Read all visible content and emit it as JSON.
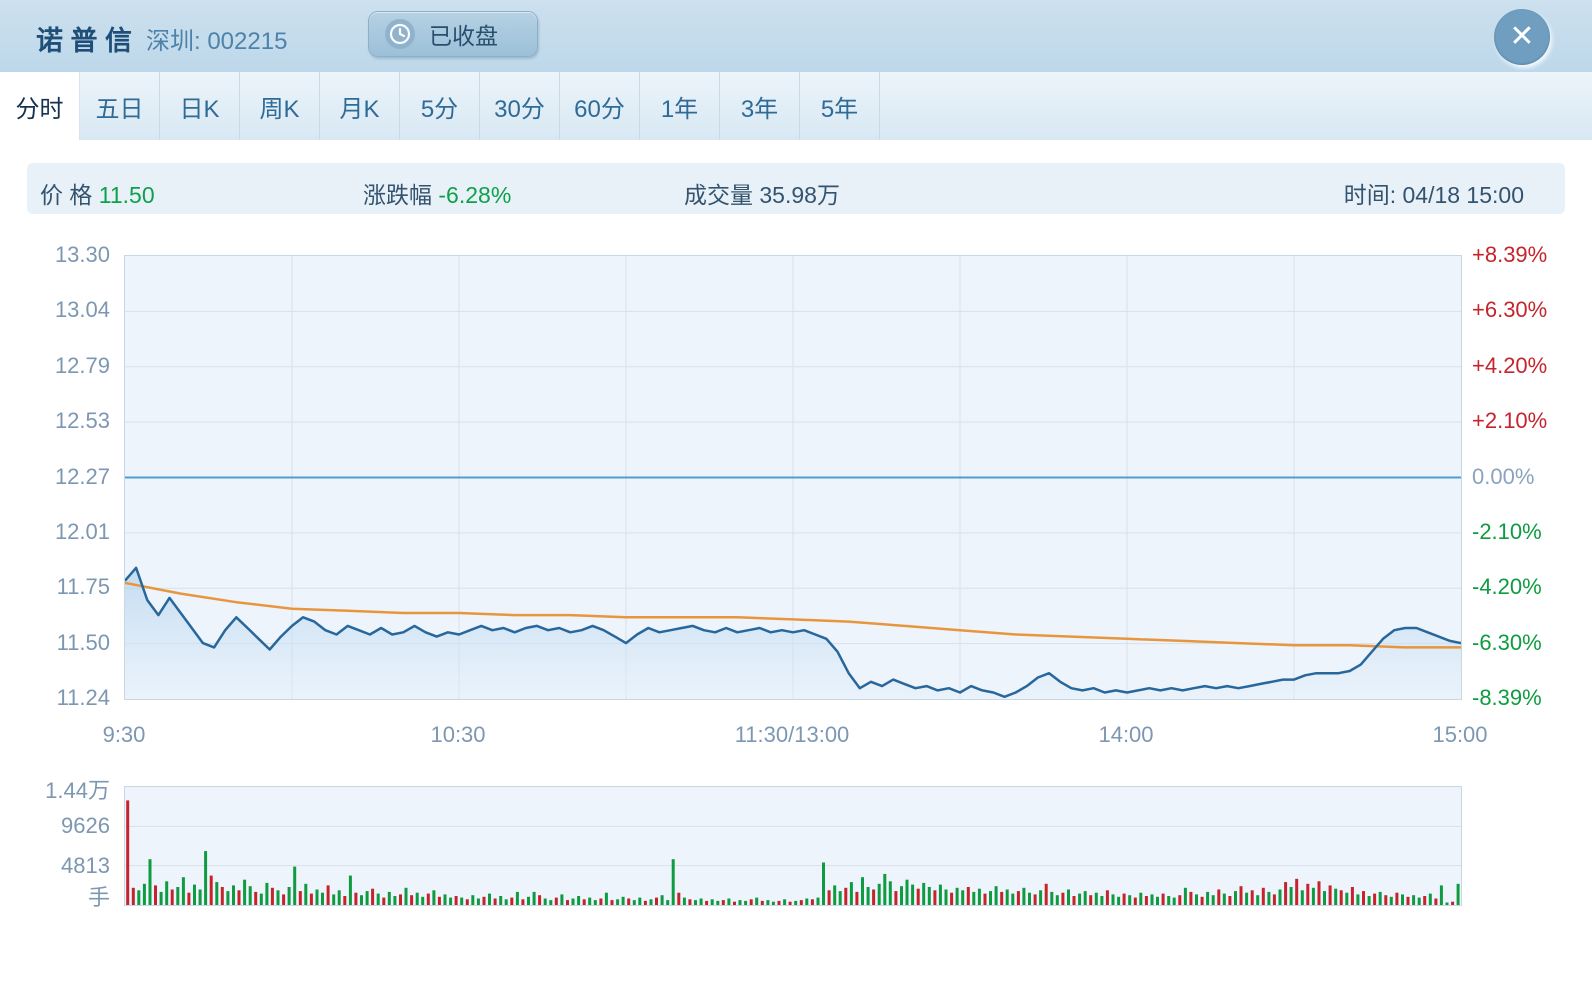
{
  "header": {
    "title": "诺 普 信",
    "exchange_code": "深圳: 002215",
    "market_status": "已收盘",
    "close_glyph": "✕"
  },
  "tabs": [
    {
      "name": "intraday",
      "label": "分时",
      "active": true
    },
    {
      "name": "5day",
      "label": "五日",
      "active": false
    },
    {
      "name": "daily-k",
      "label": "日K",
      "active": false
    },
    {
      "name": "weekly-k",
      "label": "周K",
      "active": false
    },
    {
      "name": "monthly-k",
      "label": "月K",
      "active": false
    },
    {
      "name": "5min",
      "label": "5分",
      "active": false
    },
    {
      "name": "30min",
      "label": "30分",
      "active": false
    },
    {
      "name": "60min",
      "label": "60分",
      "active": false
    },
    {
      "name": "1year",
      "label": "1年",
      "active": false
    },
    {
      "name": "3year",
      "label": "3年",
      "active": false
    },
    {
      "name": "5year",
      "label": "5年",
      "active": false
    }
  ],
  "info_bar": {
    "price_label": "价 格",
    "price_value": "11.50",
    "change_label": "涨跌幅",
    "change_value": "-6.28%",
    "volume_label": "成交量",
    "volume_value": "35.98万",
    "time_label": "时间:",
    "time_value": "04/18 15:00"
  },
  "colors": {
    "price_line": "#28679b",
    "average_line": "#e8963e",
    "previous_close_line": "#549bcd",
    "up_red": "#c5242c",
    "down_green": "#0f9b41",
    "neutral_axis": "#8aa4bd",
    "grid": "#d7e1eb",
    "area_fill_top": "rgba(160,200,233,0.55)",
    "area_fill_bottom": "rgba(228,240,250,0.40)"
  },
  "chart_data": {
    "type": "line",
    "title": "诺普信 002215 分时走势",
    "x_axis_labels": [
      "9:30",
      "10:30",
      "11:30/13:00",
      "14:00",
      "15:00"
    ],
    "minutes_span": 240,
    "price_axis_max": 13.3,
    "price_axis_min": 11.24,
    "previous_close": 12.27,
    "left_axis_prices": [
      "13.30",
      "13.04",
      "12.79",
      "12.53",
      "12.27",
      "12.01",
      "11.75",
      "11.50",
      "11.24"
    ],
    "right_axis_percent": [
      {
        "label": "+8.39%",
        "tone": "red"
      },
      {
        "label": "+6.30%",
        "tone": "red"
      },
      {
        "label": "+4.20%",
        "tone": "red"
      },
      {
        "label": "+2.10%",
        "tone": "red"
      },
      {
        "label": "0.00%",
        "tone": "neutral"
      },
      {
        "label": "-2.10%",
        "tone": "green"
      },
      {
        "label": "-4.20%",
        "tone": "green"
      },
      {
        "label": "-6.30%",
        "tone": "green"
      },
      {
        "label": "-8.39%",
        "tone": "green"
      }
    ],
    "series": [
      {
        "name": "price",
        "step_minutes": 2,
        "values": [
          11.79,
          11.85,
          11.7,
          11.63,
          11.71,
          11.64,
          11.57,
          11.5,
          11.48,
          11.56,
          11.62,
          11.57,
          11.52,
          11.47,
          11.53,
          11.58,
          11.62,
          11.6,
          11.56,
          11.54,
          11.58,
          11.56,
          11.54,
          11.57,
          11.54,
          11.55,
          11.58,
          11.55,
          11.53,
          11.55,
          11.54,
          11.56,
          11.58,
          11.56,
          11.57,
          11.55,
          11.57,
          11.58,
          11.56,
          11.57,
          11.55,
          11.56,
          11.58,
          11.56,
          11.53,
          11.5,
          11.54,
          11.57,
          11.55,
          11.56,
          11.57,
          11.58,
          11.56,
          11.55,
          11.57,
          11.55,
          11.56,
          11.57,
          11.55,
          11.56,
          11.55,
          11.56,
          11.54,
          11.52,
          11.46,
          11.36,
          11.29,
          11.32,
          11.3,
          11.33,
          11.31,
          11.29,
          11.3,
          11.28,
          11.29,
          11.27,
          11.3,
          11.28,
          11.27,
          11.25,
          11.27,
          11.3,
          11.34,
          11.36,
          11.32,
          11.29,
          11.28,
          11.29,
          11.27,
          11.28,
          11.27,
          11.28,
          11.29,
          11.28,
          11.29,
          11.28,
          11.29,
          11.3,
          11.29,
          11.3,
          11.29,
          11.3,
          11.31,
          11.32,
          11.33,
          11.33,
          11.35,
          11.36,
          11.36,
          11.36,
          11.37,
          11.4,
          11.46,
          11.52,
          11.56,
          11.57,
          11.57,
          11.55,
          11.53,
          11.51,
          11.5
        ]
      },
      {
        "name": "average",
        "step_minutes": 10,
        "values": [
          11.78,
          11.73,
          11.69,
          11.66,
          11.65,
          11.64,
          11.64,
          11.63,
          11.63,
          11.62,
          11.62,
          11.62,
          11.61,
          11.6,
          11.58,
          11.56,
          11.54,
          11.53,
          11.52,
          11.51,
          11.5,
          11.49,
          11.49,
          11.48,
          11.48
        ]
      }
    ],
    "volume": {
      "axis_labels": [
        "1.44万",
        "9626",
        "4813"
      ],
      "unit_label": "手",
      "axis_max": 14439,
      "sign_note": "positive value = green bar, negative value = red bar",
      "bars": [
        -12800,
        -2100,
        1800,
        2600,
        5600,
        -2400,
        1600,
        2900,
        -1900,
        2200,
        3400,
        -1500,
        2500,
        1900,
        6600,
        -3600,
        2800,
        -2200,
        1700,
        2400,
        -1800,
        3100,
        2300,
        -1600,
        1400,
        2700,
        -2100,
        1800,
        -1300,
        2200,
        4700,
        -1700,
        2600,
        -1400,
        1900,
        1500,
        -2400,
        1300,
        1800,
        -1100,
        3600,
        -1500,
        1200,
        1700,
        -2000,
        1400,
        -900,
        1600,
        1100,
        -1300,
        2100,
        -1200,
        1500,
        1000,
        -1400,
        1800,
        -1000,
        1300,
        900,
        -1100,
        900,
        -700,
        1200,
        800,
        -1000,
        1400,
        -800,
        1100,
        700,
        -900,
        1600,
        -700,
        1000,
        1600,
        -1200,
        800,
        600,
        -900,
        1300,
        -600,
        800,
        1100,
        -700,
        900,
        600,
        -800,
        1500,
        -600,
        700,
        1000,
        -800,
        600,
        900,
        -500,
        700,
        -900,
        1200,
        600,
        5600,
        -1500,
        900,
        -700,
        600,
        800,
        -500,
        700,
        500,
        -600,
        800,
        -400,
        600,
        500,
        -700,
        900,
        -500,
        600,
        400,
        -500,
        700,
        -400,
        500,
        -600,
        800,
        -700,
        900,
        5200,
        -1800,
        2400,
        1700,
        -2100,
        2800,
        -1600,
        3400,
        2200,
        -1900,
        2600,
        3800,
        2900,
        -1700,
        2300,
        3100,
        2500,
        -2000,
        2700,
        2200,
        -1800,
        2500,
        1900,
        -1500,
        2100,
        1800,
        -2200,
        1600,
        2000,
        -1400,
        1700,
        2300,
        -1600,
        1900,
        1400,
        -1700,
        2100,
        1500,
        -1300,
        1800,
        -2600,
        1600,
        1200,
        -1500,
        1900,
        -1100,
        1400,
        1700,
        -1200,
        1500,
        1100,
        -1800,
        1300,
        1000,
        -1400,
        1200,
        -900,
        1500,
        -1100,
        1300,
        1000,
        -1400,
        1100,
        900,
        -1200,
        2100,
        -1600,
        1300,
        -1000,
        1600,
        1200,
        -1900,
        1400,
        -1100,
        1700,
        -2300,
        1500,
        -1800,
        1200,
        -2100,
        1600,
        -1300,
        1900,
        -2800,
        2200,
        -3200,
        1800,
        -2600,
        2100,
        -2900,
        1700,
        -2400,
        2000,
        -1800,
        1500,
        -2200,
        1300,
        -1700,
        1100,
        -1400,
        1600,
        -1200,
        1000,
        -1500,
        1300,
        -1000,
        1200,
        900,
        -1100,
        1400,
        -800,
        2400,
        300,
        -400,
        2600
      ]
    }
  }
}
